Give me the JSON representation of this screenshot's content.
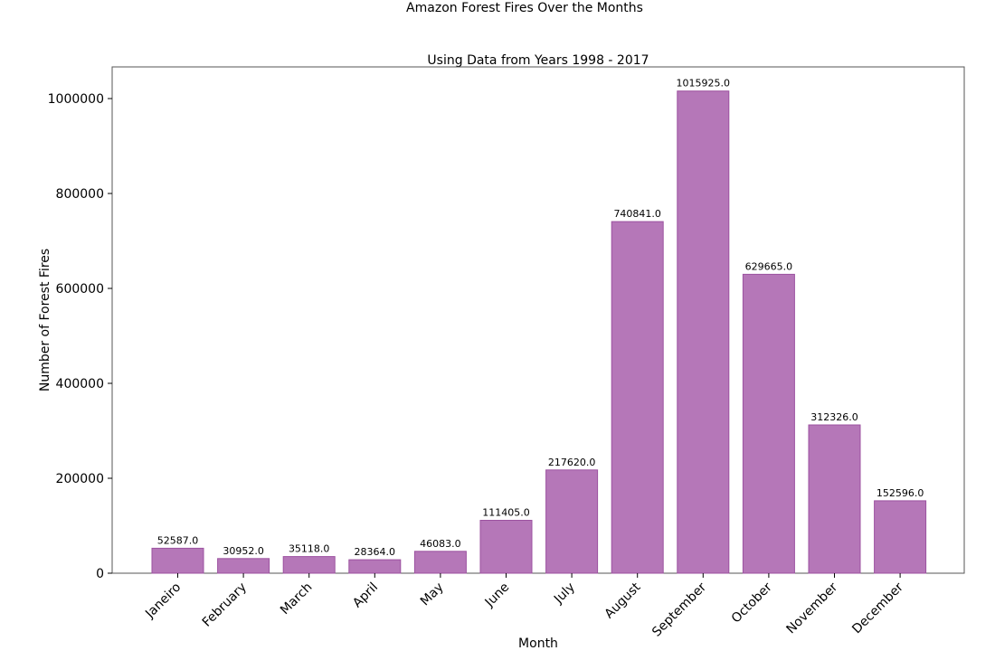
{
  "chart_data": {
    "type": "bar",
    "suptitle": "Amazon Forest Fires Over the Months",
    "title": "Using Data from Years 1998 - 2017",
    "xlabel": "Month",
    "ylabel": "Number of Forest Fires",
    "categories": [
      "Janeiro",
      "February",
      "March",
      "April",
      "May",
      "June",
      "July",
      "August",
      "September",
      "October",
      "November",
      "December"
    ],
    "values": [
      52587.0,
      30952.0,
      35118.0,
      28364.0,
      46083.0,
      111405.0,
      217620.0,
      740841.0,
      1015925.0,
      629665.0,
      312326.0,
      152596.0
    ],
    "value_labels": [
      "52587.0",
      "30952.0",
      "35118.0",
      "28364.0",
      "46083.0",
      "111405.0",
      "217620.0",
      "740841.0",
      "1015925.0",
      "629665.0",
      "312326.0",
      "152596.0"
    ],
    "ylim": [
      0,
      1066700
    ],
    "yticks": [
      0,
      200000,
      400000,
      600000,
      800000,
      1000000
    ],
    "ytick_labels": [
      "0",
      "200000",
      "400000",
      "600000",
      "800000",
      "1000000"
    ],
    "grid": false,
    "bar_color": "#a85fab"
  }
}
